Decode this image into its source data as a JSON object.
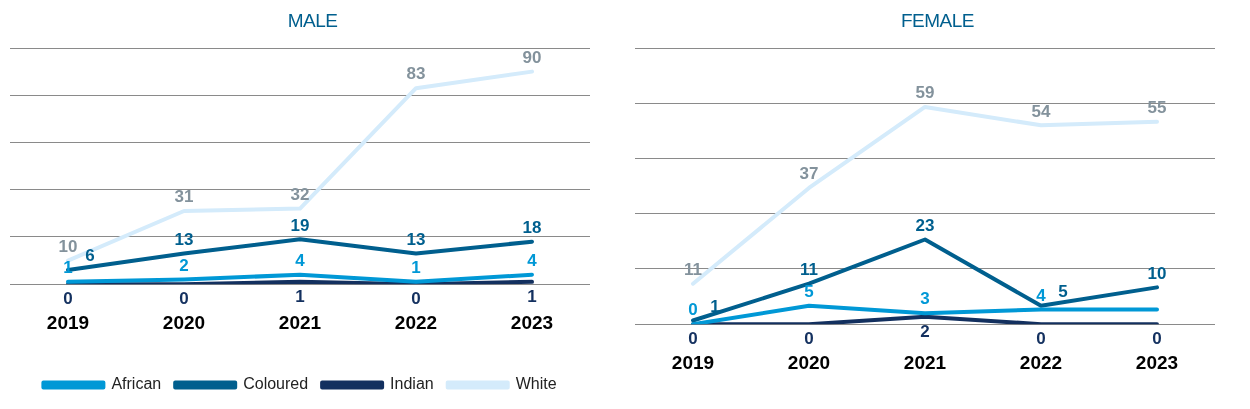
{
  "chart_data": [
    {
      "type": "line",
      "title": "MALE",
      "categories": [
        "2019",
        "2020",
        "2021",
        "2022",
        "2023"
      ],
      "ylim": [
        0,
        100
      ],
      "yticks": [
        {
          "value": 0,
          "label": null
        },
        {
          "value": 20,
          "label": null
        },
        {
          "value": 40,
          "label": null
        },
        {
          "value": 60,
          "label": null
        },
        {
          "value": 80,
          "label": null
        },
        {
          "value": 100,
          "label": null
        }
      ],
      "grid": "y",
      "tick_labels": "x",
      "data_labels": true,
      "legend": "bottom",
      "marker": "none",
      "series": [
        {
          "name": "African",
          "color": "#0098d6",
          "values": [
            1,
            2,
            4,
            1,
            4
          ]
        },
        {
          "name": "Coloured",
          "color": "#005f8e",
          "values": [
            6,
            13,
            19,
            13,
            18
          ]
        },
        {
          "name": "Indian",
          "color": "#13305f",
          "values": [
            0,
            0,
            1,
            0,
            1
          ]
        },
        {
          "name": "White",
          "color": "#d4ebfb",
          "values": [
            10,
            31,
            32,
            83,
            90
          ]
        }
      ]
    },
    {
      "type": "line",
      "title": "FEMALE",
      "categories": [
        "2019",
        "2020",
        "2021",
        "2022",
        "2023"
      ],
      "ylim": [
        0,
        75
      ],
      "yticks": [
        {
          "value": 0,
          "label": null
        },
        {
          "value": 15,
          "label": null
        },
        {
          "value": 30,
          "label": null
        },
        {
          "value": 45,
          "label": null
        },
        {
          "value": 60,
          "label": null
        },
        {
          "value": 75,
          "label": null
        }
      ],
      "grid": "y",
      "tick_labels": "x",
      "marker": "none",
      "series": [
        {
          "color": "#0098d6",
          "values": [
            0,
            5,
            3,
            4,
            4
          ],
          "value_labels": [
            "0",
            "5",
            "3",
            "4",
            null
          ]
        },
        {
          "color": "#005f8e",
          "values": [
            1,
            11,
            23,
            5,
            10
          ],
          "value_labels": [
            "1",
            "11",
            "23",
            "5",
            "10"
          ]
        },
        {
          "color": "#13305f",
          "values": [
            0,
            0,
            2,
            0,
            0
          ],
          "value_labels": [
            "0",
            "0",
            "2",
            "0",
            "0"
          ]
        },
        {
          "color": "#d4ebfb",
          "values": [
            11,
            37,
            59,
            54,
            55
          ],
          "value_labels": [
            "11",
            "37",
            "59",
            "54",
            "55"
          ]
        }
      ]
    }
  ]
}
